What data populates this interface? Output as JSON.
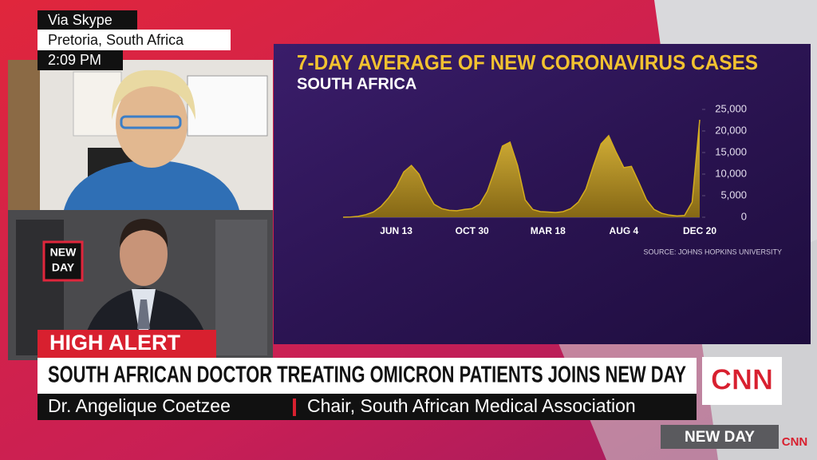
{
  "overlay": {
    "source": "Via Skype",
    "location": "Pretoria, South Africa",
    "time": "2:09 PM",
    "show_logo": [
      "NEW",
      "DAY"
    ],
    "alert": "HIGH ALERT",
    "headline": "SOUTH AFRICAN DOCTOR TREATING OMICRON PATIENTS JOINS NEW DAY",
    "guest_name": "Dr. Angelique Coetzee",
    "guest_title": "Chair, South African Medical Association",
    "network": "CNN",
    "program": "NEW DAY",
    "network_bug": "CNN"
  },
  "chart_data": {
    "type": "area",
    "title": "7-DAY AVERAGE OF NEW CORONAVIRUS CASES",
    "subtitle": "SOUTH AFRICA",
    "source": "SOURCE: JOHNS HOPKINS UNIVERSITY",
    "categories": [
      null,
      null,
      null,
      null,
      null,
      null,
      null,
      "JUN 13",
      null,
      null,
      null,
      null,
      null,
      null,
      null,
      null,
      null,
      "OCT 30",
      null,
      null,
      null,
      null,
      null,
      null,
      null,
      null,
      null,
      "MAR 18",
      null,
      null,
      null,
      null,
      null,
      null,
      null,
      null,
      null,
      "AUG 4",
      null,
      null,
      null,
      null,
      null,
      null,
      null,
      null,
      null,
      "DEC 20"
    ],
    "values": [
      0,
      50,
      200,
      600,
      1200,
      2500,
      4500,
      7000,
      10500,
      12000,
      10000,
      6000,
      3000,
      2000,
      1600,
      1500,
      1800,
      2000,
      3000,
      6000,
      11000,
      16500,
      17400,
      12000,
      4000,
      1800,
      1300,
      1200,
      1100,
      1300,
      2000,
      3500,
      6500,
      12000,
      17000,
      18900,
      15000,
      11500,
      11800,
      8000,
      4000,
      1800,
      900,
      500,
      300,
      400,
      3500,
      22600
    ],
    "color": "#d4ac1e",
    "ylim": [
      0,
      25000
    ],
    "yticks": [
      0,
      {
        "value": 5000,
        "label": "5,000"
      },
      {
        "value": 10000,
        "label": "10,000"
      },
      {
        "value": 15000,
        "label": "15,000"
      },
      {
        "value": 20000,
        "label": "20,000"
      },
      {
        "value": 25000,
        "label": "25,000"
      }
    ]
  }
}
